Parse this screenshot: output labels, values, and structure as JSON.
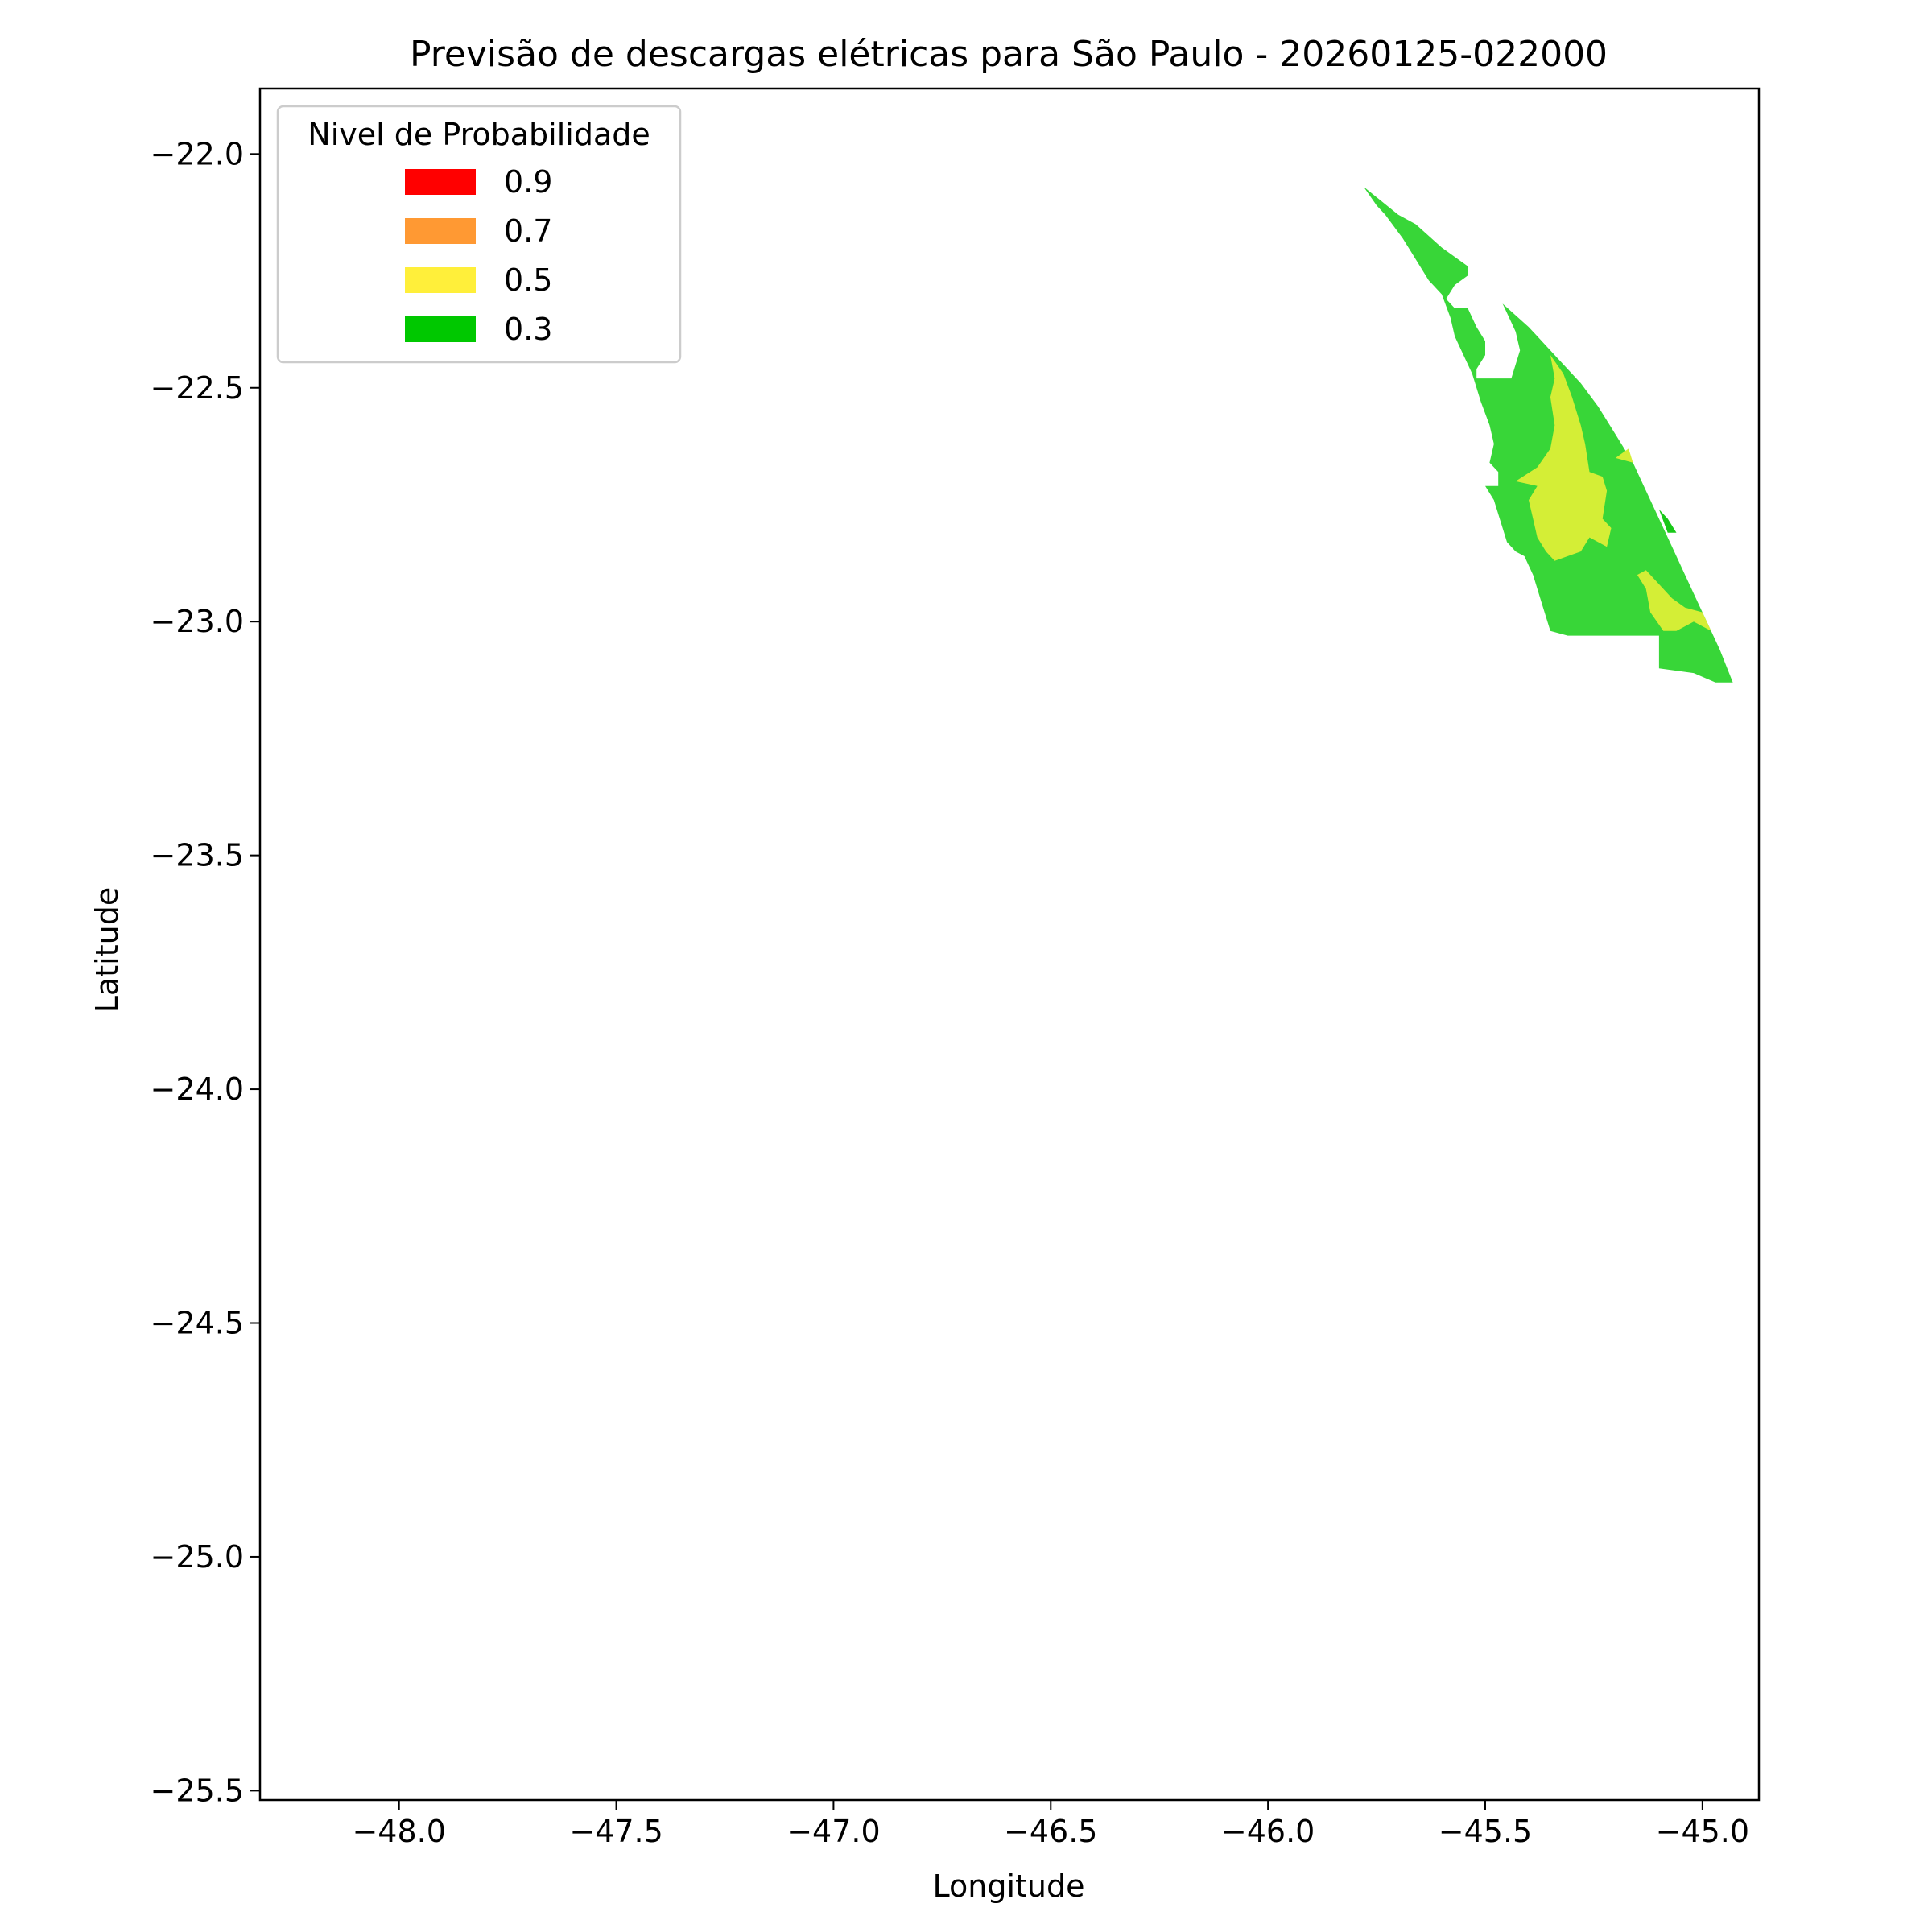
{
  "chart_data": {
    "type": "map",
    "title": "Previsão de descargas elétricas para São Paulo - 20260125-022000",
    "xlabel": "Longitude",
    "ylabel": "Latitude",
    "xlim": [
      -48.32,
      -44.87
    ],
    "ylim": [
      -25.52,
      -21.86
    ],
    "x_ticks": [
      -48.0,
      -47.5,
      -47.0,
      -46.5,
      -46.0,
      -45.5,
      -45.0
    ],
    "x_tick_labels": [
      "−48.0",
      "−47.5",
      "−47.0",
      "−46.5",
      "−46.0",
      "−45.5",
      "−45.0"
    ],
    "y_ticks": [
      -22.0,
      -22.5,
      -23.0,
      -23.5,
      -24.0,
      -24.5,
      -25.0,
      -25.5
    ],
    "y_tick_labels": [
      "−22.0",
      "−22.5",
      "−23.0",
      "−23.5",
      "−24.0",
      "−24.5",
      "−25.0",
      "−25.5"
    ],
    "grid": false,
    "legend": {
      "title": "Nivel de Probabilidade",
      "placement": "top-left",
      "entries": [
        {
          "label": "0.9",
          "color": "#ff0000"
        },
        {
          "label": "0.7",
          "color": "#ff9933"
        },
        {
          "label": "0.5",
          "color": "#ffef3a"
        },
        {
          "label": "0.3",
          "color": "#00c800"
        }
      ]
    },
    "regions": [
      {
        "level": 0.3,
        "color": "#38d638",
        "points": [
          [
            -45.78,
            -22.07
          ],
          [
            -45.74,
            -22.1
          ],
          [
            -45.7,
            -22.13
          ],
          [
            -45.66,
            -22.15
          ],
          [
            -45.6,
            -22.2
          ],
          [
            -45.54,
            -22.24
          ],
          [
            -45.54,
            -22.26
          ],
          [
            -45.57,
            -22.28
          ],
          [
            -45.59,
            -22.31
          ],
          [
            -45.57,
            -22.33
          ],
          [
            -45.54,
            -22.33
          ],
          [
            -45.52,
            -22.37
          ],
          [
            -45.5,
            -22.4
          ],
          [
            -45.5,
            -22.43
          ],
          [
            -45.52,
            -22.46
          ],
          [
            -45.52,
            -22.48
          ],
          [
            -45.44,
            -22.48
          ],
          [
            -45.42,
            -22.42
          ],
          [
            -45.43,
            -22.38
          ],
          [
            -45.44,
            -22.36
          ],
          [
            -45.46,
            -22.32
          ],
          [
            -45.4,
            -22.37
          ],
          [
            -45.34,
            -22.43
          ],
          [
            -45.28,
            -22.49
          ],
          [
            -45.24,
            -22.54
          ],
          [
            -45.2,
            -22.6
          ],
          [
            -45.16,
            -22.66
          ],
          [
            -45.13,
            -22.72
          ],
          [
            -45.1,
            -22.78
          ],
          [
            -45.07,
            -22.84
          ],
          [
            -45.04,
            -22.9
          ],
          [
            -45.01,
            -22.96
          ],
          [
            -44.98,
            -23.02
          ],
          [
            -44.96,
            -23.06
          ],
          [
            -44.93,
            -23.13
          ],
          [
            -44.97,
            -23.13
          ],
          [
            -45.02,
            -23.11
          ],
          [
            -45.1,
            -23.1
          ],
          [
            -45.1,
            -23.03
          ],
          [
            -45.14,
            -23.03
          ],
          [
            -45.18,
            -23.03
          ],
          [
            -45.26,
            -23.03
          ],
          [
            -45.31,
            -23.03
          ],
          [
            -45.35,
            -23.02
          ],
          [
            -45.37,
            -22.96
          ],
          [
            -45.39,
            -22.9
          ],
          [
            -45.41,
            -22.86
          ],
          [
            -45.43,
            -22.85
          ],
          [
            -45.45,
            -22.83
          ],
          [
            -45.46,
            -22.8
          ],
          [
            -45.47,
            -22.77
          ],
          [
            -45.48,
            -22.74
          ],
          [
            -45.5,
            -22.71
          ],
          [
            -45.47,
            -22.71
          ],
          [
            -45.47,
            -22.68
          ],
          [
            -45.49,
            -22.66
          ],
          [
            -45.48,
            -22.62
          ],
          [
            -45.49,
            -22.58
          ],
          [
            -45.51,
            -22.53
          ],
          [
            -45.53,
            -22.47
          ],
          [
            -45.55,
            -22.43
          ],
          [
            -45.57,
            -22.39
          ],
          [
            -45.58,
            -22.35
          ],
          [
            -45.6,
            -22.3
          ],
          [
            -45.63,
            -22.27
          ],
          [
            -45.65,
            -22.24
          ],
          [
            -45.67,
            -22.21
          ],
          [
            -45.69,
            -22.18
          ],
          [
            -45.73,
            -22.13
          ],
          [
            -45.75,
            -22.11
          ]
        ]
      },
      {
        "level": 0.5,
        "color": "#d4ee36",
        "points": [
          [
            -45.35,
            -22.43
          ],
          [
            -45.32,
            -22.47
          ],
          [
            -45.3,
            -22.52
          ],
          [
            -45.28,
            -22.58
          ],
          [
            -45.27,
            -22.62
          ],
          [
            -45.26,
            -22.68
          ],
          [
            -45.23,
            -22.69
          ],
          [
            -45.22,
            -22.72
          ],
          [
            -45.23,
            -22.78
          ],
          [
            -45.21,
            -22.8
          ],
          [
            -45.22,
            -22.84
          ],
          [
            -45.26,
            -22.82
          ],
          [
            -45.28,
            -22.85
          ],
          [
            -45.31,
            -22.86
          ],
          [
            -45.34,
            -22.87
          ],
          [
            -45.36,
            -22.85
          ],
          [
            -45.38,
            -22.82
          ],
          [
            -45.39,
            -22.78
          ],
          [
            -45.4,
            -22.74
          ],
          [
            -45.38,
            -22.71
          ],
          [
            -45.43,
            -22.7
          ],
          [
            -45.38,
            -22.67
          ],
          [
            -45.35,
            -22.63
          ],
          [
            -45.34,
            -22.58
          ],
          [
            -45.35,
            -22.52
          ],
          [
            -45.34,
            -22.48
          ]
        ]
      },
      {
        "level": 0.5,
        "color": "#d4ee36",
        "points": [
          [
            -45.17,
            -22.63
          ],
          [
            -45.2,
            -22.65
          ],
          [
            -45.16,
            -22.66
          ]
        ]
      },
      {
        "level": 0.5,
        "color": "#d4ee36",
        "points": [
          [
            -45.15,
            -22.9
          ],
          [
            -45.13,
            -22.93
          ],
          [
            -45.12,
            -22.98
          ],
          [
            -45.09,
            -23.02
          ],
          [
            -45.06,
            -23.02
          ],
          [
            -45.02,
            -23.0
          ],
          [
            -44.98,
            -23.02
          ],
          [
            -45.0,
            -22.98
          ],
          [
            -45.04,
            -22.97
          ],
          [
            -45.07,
            -22.95
          ],
          [
            -45.1,
            -22.92
          ],
          [
            -45.13,
            -22.89
          ]
        ]
      },
      {
        "level": 0.3,
        "color": "#18c818",
        "points": [
          [
            -45.1,
            -22.76
          ],
          [
            -45.08,
            -22.78
          ],
          [
            -45.06,
            -22.81
          ],
          [
            -45.08,
            -22.81
          ]
        ]
      }
    ]
  }
}
